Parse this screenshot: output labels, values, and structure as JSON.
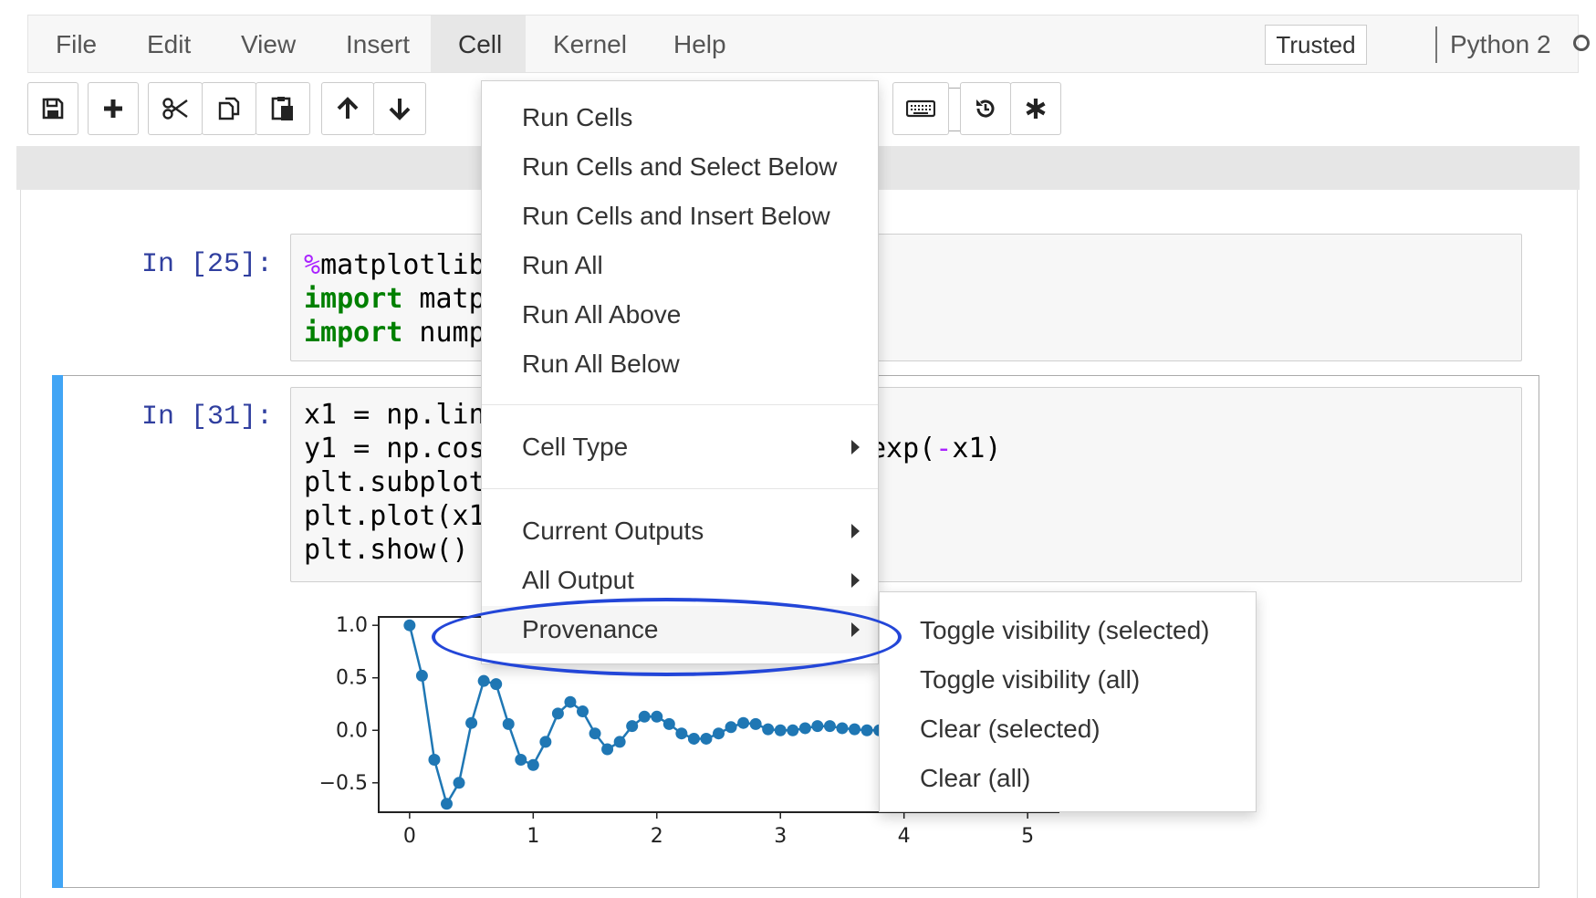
{
  "menubar": {
    "items": [
      "File",
      "Edit",
      "View",
      "Insert",
      "Cell",
      "Kernel",
      "Help"
    ],
    "active": "Cell",
    "trusted_label": "Trusted",
    "kernel_name": "Python 2"
  },
  "toolbar": {
    "buttons": [
      "save-icon",
      "plus-icon",
      "cut-icon",
      "copy-icon",
      "paste-icon",
      "arrow-up-icon",
      "arrow-down-icon",
      "keyboard-icon",
      "restart-icon",
      "asterisk-icon"
    ]
  },
  "cells": [
    {
      "prompt": "In [25]:",
      "lines": [
        {
          "parts": [
            {
              "t": "%",
              "c": "mg"
            },
            {
              "t": "matplotlib",
              "c": ""
            }
          ]
        },
        {
          "parts": [
            {
              "t": "import",
              "c": "kw"
            },
            {
              "t": " matplotlib",
              "c": ""
            }
          ]
        },
        {
          "parts": [
            {
              "t": "import",
              "c": "kw"
            },
            {
              "t": " numpy",
              "c": ""
            }
          ]
        }
      ]
    },
    {
      "prompt": "In [31]:",
      "lines": [
        {
          "parts": [
            {
              "t": "x1 = np.linspace",
              "c": ""
            }
          ]
        },
        {
          "parts": [
            {
              "t": "y1 = np.cos",
              "c": ""
            }
          ]
        },
        {
          "parts": [
            {
              "t": "plt.subplot",
              "c": ""
            }
          ]
        },
        {
          "parts": [
            {
              "t": "plt.plot(x1",
              "c": ""
            }
          ]
        },
        {
          "parts": [
            {
              "t": "plt.show()",
              "c": ""
            }
          ]
        }
      ],
      "visible_tail": [
        {
          "t": "exp(",
          "c": ""
        },
        {
          "t": "-",
          "c": "mg"
        },
        {
          "t": "x1)",
          "c": ""
        }
      ]
    }
  ],
  "cell_menu": {
    "items": [
      {
        "label": "Run Cells"
      },
      {
        "label": "Run Cells and Select Below"
      },
      {
        "label": "Run Cells and Insert Below"
      },
      {
        "label": "Run All"
      },
      {
        "label": "Run All Above"
      },
      {
        "label": "Run All Below"
      },
      {
        "label": "Cell Type",
        "submenu": true
      },
      {
        "label": "Current Outputs",
        "submenu": true
      },
      {
        "label": "All Output",
        "submenu": true
      },
      {
        "label": "Provenance",
        "submenu": true,
        "highlighted": true
      }
    ]
  },
  "provenance_submenu": {
    "items": [
      "Toggle visibility (selected)",
      "Toggle visibility (all)",
      "Clear (selected)",
      "Clear (all)"
    ]
  },
  "chart_data": {
    "type": "line",
    "marker": "circle",
    "color": "#1f77b4",
    "x": [
      0.0,
      0.1,
      0.2,
      0.3,
      0.4,
      0.5,
      0.6,
      0.7,
      0.8,
      0.9,
      1.0,
      1.1,
      1.2,
      1.3,
      1.4,
      1.5,
      1.6,
      1.7,
      1.8,
      1.9,
      2.0,
      2.1,
      2.2,
      2.3,
      2.4,
      2.5,
      2.6,
      2.7,
      2.8,
      2.9,
      3.0,
      3.1,
      3.2,
      3.3,
      3.4,
      3.5,
      3.6,
      3.7,
      3.8
    ],
    "y": [
      1.0,
      0.52,
      -0.28,
      -0.7,
      -0.5,
      0.07,
      0.47,
      0.44,
      0.06,
      -0.28,
      -0.33,
      -0.11,
      0.16,
      0.27,
      0.18,
      -0.03,
      -0.18,
      -0.11,
      0.04,
      0.13,
      0.13,
      0.06,
      -0.03,
      -0.08,
      -0.08,
      -0.03,
      0.03,
      0.07,
      0.06,
      0.01,
      0.0,
      0.0,
      0.02,
      0.04,
      0.04,
      0.02,
      0.01,
      0.0,
      0.0
    ],
    "xticks": [
      "0",
      "1",
      "2",
      "3",
      "4",
      "5"
    ],
    "yticks": [
      "1.0",
      "0.5",
      "0.0",
      "−0.5"
    ],
    "xlim": [
      -0.25,
      5.25
    ],
    "ylim": [
      -0.78,
      1.08
    ]
  }
}
